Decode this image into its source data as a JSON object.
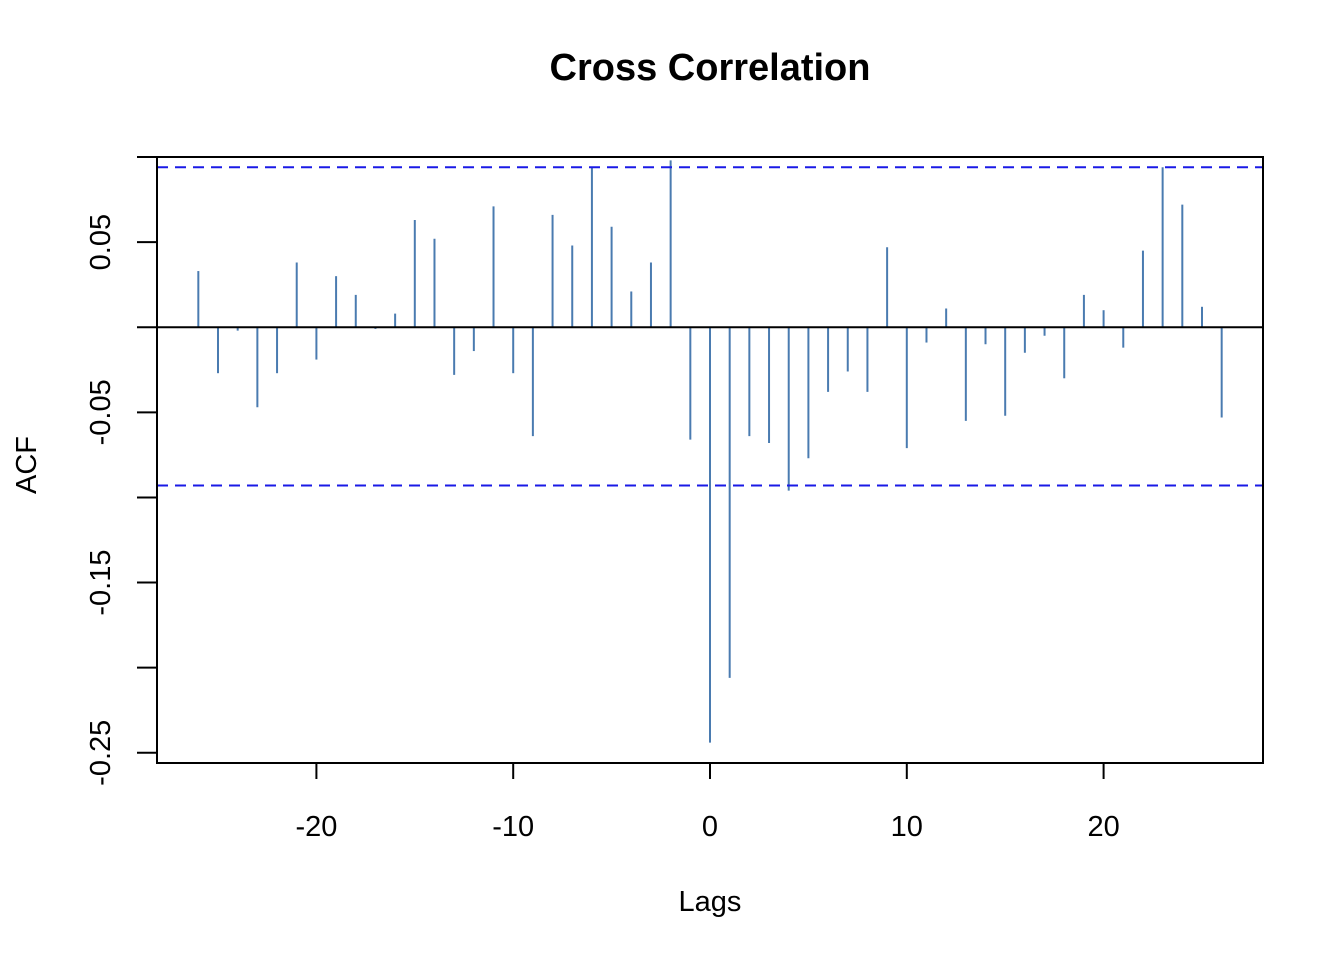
{
  "chart_data": {
    "type": "bar",
    "title": "Cross Correlation",
    "xlabel": "Lags",
    "ylabel": "ACF",
    "xlim": [
      -28.1,
      28.1
    ],
    "ylim": [
      -0.256,
      0.1
    ],
    "x_ticks": [
      -20,
      -10,
      0,
      10,
      20
    ],
    "x_tick_labels": [
      "-20",
      "-10",
      "0",
      "10",
      "20"
    ],
    "y_ticks": [
      0.1,
      0.05,
      0.0,
      -0.05,
      -0.1,
      -0.15,
      -0.2,
      -0.25
    ],
    "y_tick_labels": [
      "",
      "0.05",
      "",
      "-0.05",
      "",
      "-0.15",
      "",
      "-0.25"
    ],
    "grid": false,
    "legend": "none",
    "colors": {
      "bars": "#4a7bb0",
      "confidence": "#1a1ae6",
      "zero_line": "#000000",
      "frame": "#000000"
    },
    "confidence_bounds": [
      0.094,
      -0.093
    ],
    "series": [
      {
        "x": [
          -26,
          -25,
          -24,
          -23,
          -22,
          -21,
          -20,
          -19,
          -18,
          -17,
          -16,
          -15,
          -14,
          -13,
          -12,
          -11,
          -10,
          -9,
          -8,
          -7,
          -6,
          -5,
          -4,
          -3,
          -2,
          -1,
          0,
          1,
          2,
          3,
          4,
          5,
          6,
          7,
          8,
          9,
          10,
          11,
          12,
          13,
          14,
          15,
          16,
          17,
          18,
          19,
          20,
          21,
          22,
          23,
          24,
          25,
          26
        ],
        "values": [
          0.033,
          -0.027,
          -0.002,
          -0.047,
          -0.027,
          0.038,
          -0.019,
          0.03,
          0.019,
          -0.001,
          0.008,
          0.063,
          0.052,
          -0.028,
          -0.014,
          0.071,
          -0.027,
          -0.064,
          0.066,
          0.048,
          0.094,
          0.059,
          0.021,
          0.038,
          0.098,
          -0.066,
          -0.244,
          -0.206,
          -0.064,
          -0.068,
          -0.096,
          -0.077,
          -0.038,
          -0.026,
          -0.038,
          0.047,
          -0.071,
          -0.009,
          0.011,
          -0.055,
          -0.01,
          -0.052,
          -0.015,
          -0.005,
          -0.03,
          0.019,
          0.01,
          -0.012,
          0.045,
          0.094,
          0.072,
          0.012,
          -0.053
        ]
      }
    ]
  }
}
